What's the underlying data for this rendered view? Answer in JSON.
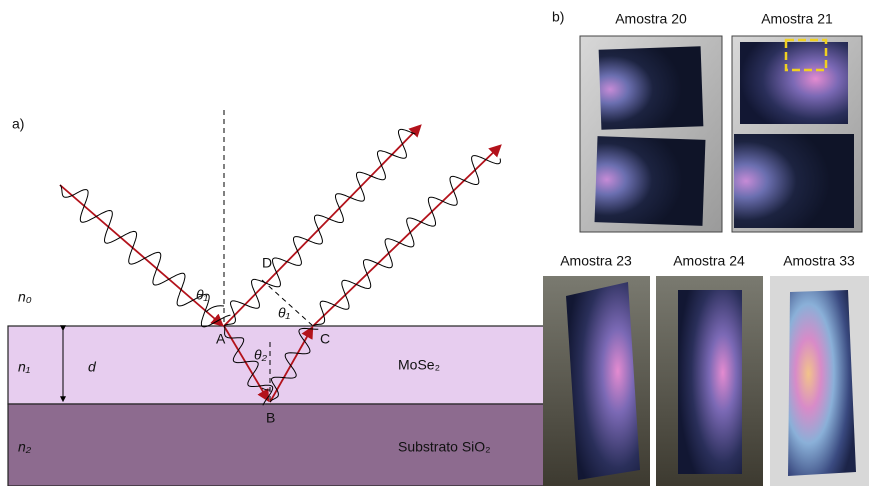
{
  "panel_a": {
    "label": "a)",
    "media": {
      "n0": "n₀",
      "n1": "n₁",
      "n2": "n₂"
    },
    "thickness": "d",
    "points": {
      "A": "A",
      "B": "B",
      "C": "C",
      "D": "D"
    },
    "angles": {
      "theta1_incident": "θ₁",
      "theta2": "θ₂",
      "theta1_reflected": "θ₁"
    },
    "layers": {
      "film": "MoSe₂",
      "substrate": "Substrato SiO₂"
    }
  },
  "panel_b": {
    "label": "b)",
    "samples": [
      "Amostra 20",
      "Amostra 21",
      "Amostra 23",
      "Amostra 24",
      "Amostra 33"
    ]
  }
}
